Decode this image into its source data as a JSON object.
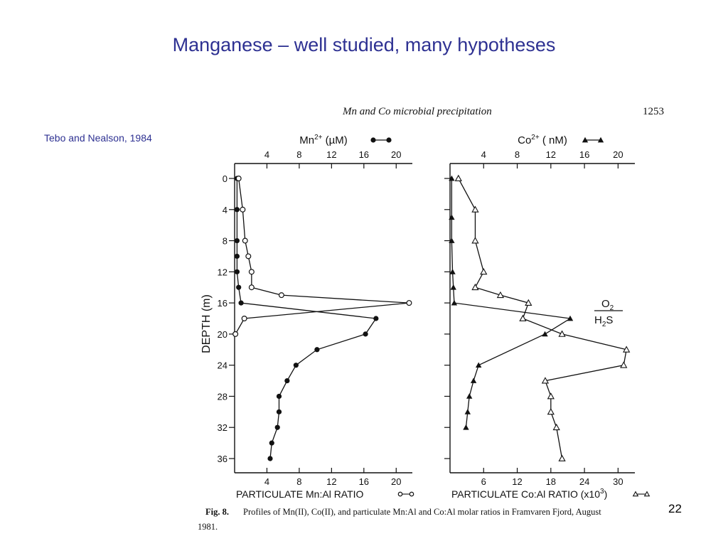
{
  "slide": {
    "title": "Manganese – well studied, many hypotheses",
    "citation": "Tebo and Nealson, 1984",
    "number": "22"
  },
  "figure": {
    "running_head": "Mn and Co microbial precipitation",
    "page_number": "1253",
    "caption_label": "Fig. 8.",
    "caption_line1": "Profiles of Mn(II), Co(II), and particulate Mn:Al and Co:Al molar ratios in Framvaren Fjord, August",
    "caption_line2": "1981.",
    "redox_label_top": "O",
    "redox_label_top_sub": "2",
    "redox_label_bottom": "H",
    "redox_label_bottom_sub": "2",
    "redox_label_bottom_end": "S"
  },
  "chart_data": [
    {
      "type": "line",
      "panel": "left",
      "ylabel": "DEPTH (m)",
      "y_ticks": [
        "0",
        "4",
        "8",
        "12",
        "16",
        "20",
        "24",
        "28",
        "32",
        "36"
      ],
      "ylim": [
        0,
        36
      ],
      "y_inverted": true,
      "top_axis": {
        "label": "Mn2+ (µM)",
        "label_parts": {
          "base": "Mn",
          "sup": "2+",
          "rest": " (",
          "mu": "µ",
          "unit": "M)"
        },
        "ticks": [
          "4",
          "8",
          "12",
          "16",
          "20"
        ],
        "lim": [
          0,
          22
        ]
      },
      "bottom_axis": {
        "label": "PARTICULATE  Mn:Al RATIO",
        "ticks": [
          "4",
          "8",
          "12",
          "16",
          "20"
        ],
        "lim": [
          0,
          22
        ]
      },
      "series": [
        {
          "name": "Mn2+",
          "axis": "top",
          "marker": "filled-circle",
          "points": [
            [
              0.3,
              0
            ],
            [
              0.3,
              4
            ],
            [
              0.3,
              8
            ],
            [
              0.3,
              10
            ],
            [
              0.3,
              12
            ],
            [
              0.5,
              14
            ],
            [
              0.8,
              16
            ],
            [
              17.5,
              18
            ],
            [
              16.2,
              20
            ],
            [
              10.2,
              22
            ],
            [
              7.6,
              24
            ],
            [
              6.5,
              26
            ],
            [
              5.5,
              28
            ],
            [
              5.5,
              30
            ],
            [
              5.3,
              32
            ],
            [
              4.6,
              34
            ],
            [
              4.4,
              36
            ]
          ]
        },
        {
          "name": "PARTICULATE Mn:Al RATIO",
          "axis": "bottom",
          "marker": "open-circle",
          "points": [
            [
              0.5,
              0
            ],
            [
              1.0,
              4
            ],
            [
              1.3,
              8
            ],
            [
              1.7,
              10
            ],
            [
              2.1,
              12
            ],
            [
              2.1,
              14
            ],
            [
              5.8,
              15
            ],
            [
              21.6,
              16
            ],
            [
              1.2,
              18
            ],
            [
              0.1,
              20
            ]
          ]
        }
      ]
    },
    {
      "type": "line",
      "panel": "right",
      "y_ticks": [
        "0",
        "4",
        "8",
        "12",
        "16",
        "20",
        "24",
        "28",
        "32",
        "36"
      ],
      "ylim": [
        0,
        36
      ],
      "y_inverted": true,
      "top_axis": {
        "label": "Co2+ (nM)",
        "label_parts": {
          "base": "Co",
          "sup": "2+",
          "rest": " ( nM)"
        },
        "ticks": [
          "4",
          "8",
          "12",
          "16",
          "20"
        ],
        "lim": [
          0,
          22
        ]
      },
      "bottom_axis": {
        "label": "PARTICULATE  Co:Al RATIO (x10",
        "label_sup": "3",
        "label_end": ")",
        "ticks": [
          "6",
          "12",
          "18",
          "24",
          "30"
        ],
        "lim": [
          0,
          33
        ]
      },
      "series": [
        {
          "name": "Co2+",
          "axis": "top",
          "marker": "filled-triangle",
          "points": [
            [
              0.2,
              0
            ],
            [
              0.2,
              5
            ],
            [
              0.2,
              8
            ],
            [
              0.3,
              12
            ],
            [
              0.4,
              14
            ],
            [
              0.5,
              16
            ],
            [
              14.3,
              18
            ],
            [
              11.3,
              20
            ],
            [
              3.4,
              24
            ],
            [
              2.8,
              26
            ],
            [
              2.3,
              28
            ],
            [
              2.1,
              30
            ],
            [
              1.9,
              32
            ]
          ]
        },
        {
          "name": "PARTICULATE Co:Al RATIO",
          "axis": "bottom",
          "marker": "open-triangle",
          "points": [
            [
              1.5,
              0
            ],
            [
              4.5,
              4
            ],
            [
              4.5,
              8
            ],
            [
              6.0,
              12
            ],
            [
              4.5,
              14
            ],
            [
              9.0,
              15
            ],
            [
              14.0,
              16
            ],
            [
              13.0,
              18
            ],
            [
              20.0,
              20
            ],
            [
              31.5,
              22
            ],
            [
              31.0,
              24
            ],
            [
              17.0,
              26
            ],
            [
              18.0,
              28
            ],
            [
              18.0,
              30
            ],
            [
              19.0,
              32
            ],
            [
              20.0,
              36
            ]
          ]
        }
      ]
    }
  ]
}
